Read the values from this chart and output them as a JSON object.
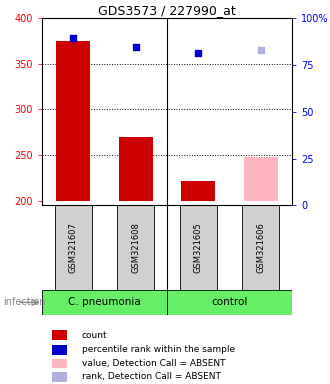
{
  "title": "GDS3573 / 227990_at",
  "samples": [
    "GSM321607",
    "GSM321608",
    "GSM321605",
    "GSM321606"
  ],
  "bar_values": [
    375,
    270,
    222,
    248
  ],
  "bar_colors": [
    "#cc0000",
    "#cc0000",
    "#cc0000",
    "#ffb6c1"
  ],
  "dot_values": [
    378,
    368,
    362,
    365
  ],
  "dot_colors": [
    "#0000cc",
    "#0000cc",
    "#0000cc",
    "#b0b0dd"
  ],
  "ylim_left": [
    195,
    400
  ],
  "ylim_right": [
    0,
    100
  ],
  "yticks_left": [
    200,
    250,
    300,
    350,
    400
  ],
  "ytick_labels_left": [
    "200",
    "250",
    "300",
    "350",
    "400"
  ],
  "yticks_right": [
    0,
    25,
    50,
    75,
    100
  ],
  "ytick_labels_right": [
    "0",
    "25",
    "50",
    "75",
    "100%"
  ],
  "dotted_lines": [
    250,
    300,
    350
  ],
  "legend_items": [
    {
      "color": "#cc0000",
      "label": "count"
    },
    {
      "color": "#0000cc",
      "label": "percentile rank within the sample"
    },
    {
      "color": "#ffb6c1",
      "label": "value, Detection Call = ABSENT"
    },
    {
      "color": "#b0b0dd",
      "label": "rank, Detection Call = ABSENT"
    }
  ],
  "bar_width": 0.55,
  "bar_bottom": 200,
  "infection_label": "infection",
  "group_green": "#66ee66",
  "sample_gray": "#d0d0d0"
}
